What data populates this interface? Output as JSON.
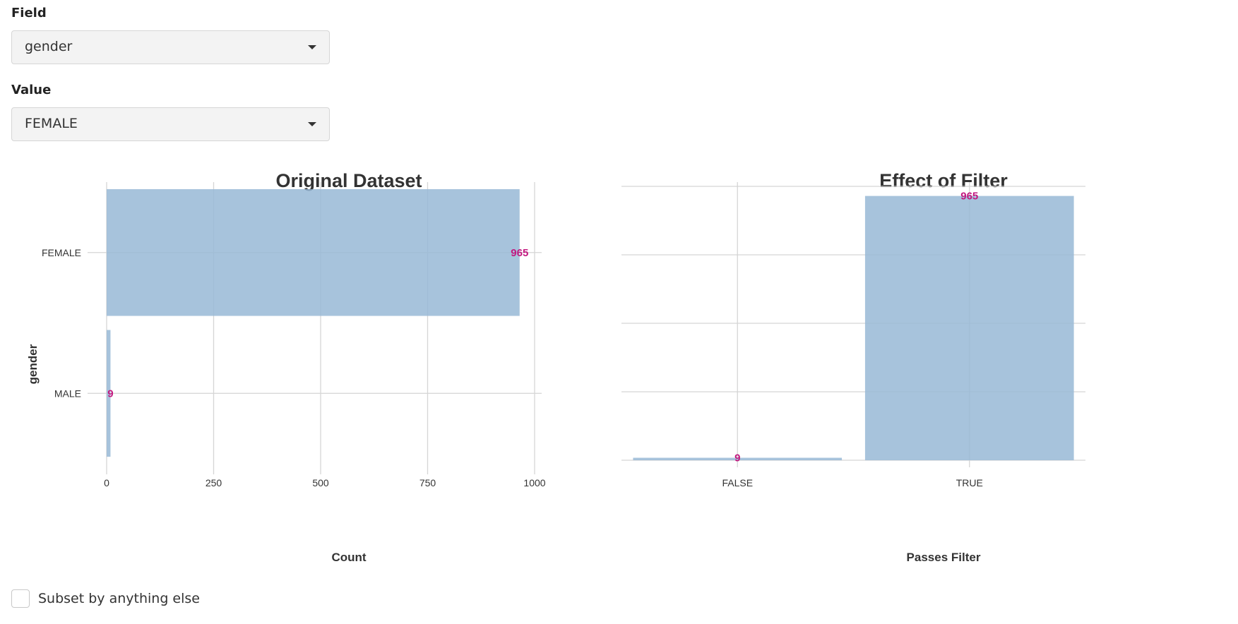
{
  "field": {
    "label": "Field",
    "value": "gender"
  },
  "value_select": {
    "label": "Value",
    "value": "FEMALE"
  },
  "checkbox": {
    "label": "Subset by anything else",
    "checked": false
  },
  "colors": {
    "bar": "#98b9d6",
    "data_label": "#c2187f",
    "grid": "#d5d5d5"
  },
  "chart_data": [
    {
      "type": "bar",
      "orientation": "horizontal",
      "title": "Original Dataset",
      "xlabel": "Count",
      "ylabel": "gender",
      "categories": [
        "FEMALE",
        "MALE"
      ],
      "values": [
        965,
        9
      ],
      "xlim": [
        0,
        1000
      ],
      "xticks": [
        0,
        250,
        500,
        750,
        1000
      ],
      "grid": true
    },
    {
      "type": "bar",
      "orientation": "vertical",
      "title": "Effect of Filter",
      "xlabel": "Passes Filter",
      "ylabel": "",
      "categories": [
        "FALSE",
        "TRUE"
      ],
      "values": [
        9,
        965
      ],
      "ylim": [
        0,
        1000
      ],
      "yticks": [
        0,
        250,
        500,
        750,
        1000
      ],
      "grid": true
    }
  ]
}
